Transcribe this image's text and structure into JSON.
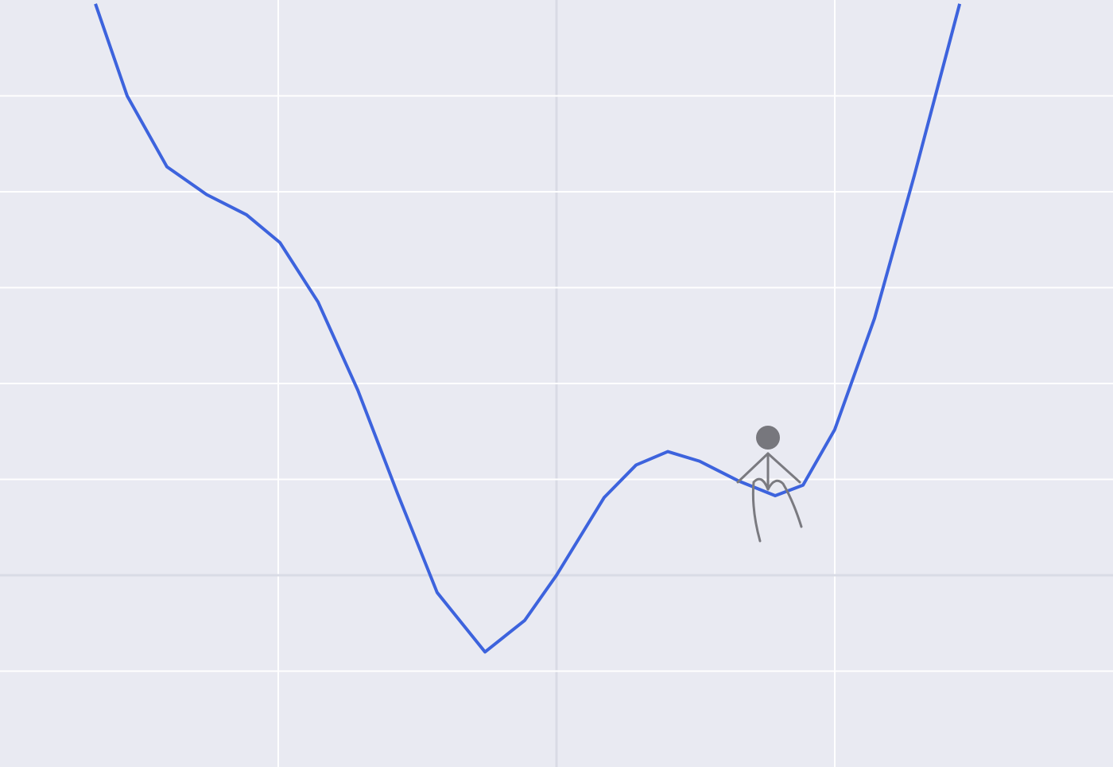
{
  "chart_data": {
    "type": "line",
    "x": [
      -1.657,
      -1.543,
      -1.4,
      -1.257,
      -1.114,
      -0.994,
      -0.857,
      -0.714,
      -0.571,
      -0.429,
      -0.257,
      -0.114,
      0,
      0.171,
      0.286,
      0.4,
      0.514,
      0.657,
      0.786,
      0.886,
      1.0,
      1.143,
      1.286,
      1.449
    ],
    "series": [
      {
        "color": "#3d63dd",
        "values": [
          5.96,
          5.0,
          4.26,
          3.97,
          3.76,
          3.47,
          2.85,
          1.93,
          0.85,
          -0.18,
          -0.8,
          -0.47,
          0,
          0.81,
          1.15,
          1.29,
          1.19,
          0.98,
          0.83,
          0.94,
          1.52,
          2.68,
          4.17,
          5.96
        ]
      }
    ],
    "xlim": [
      -2,
      2
    ],
    "ylim": [
      -2,
      6
    ],
    "xticks": [
      -1,
      0,
      1
    ],
    "yticks": [
      -1,
      0,
      1,
      2,
      3,
      4,
      5
    ],
    "grid": true
  }
}
